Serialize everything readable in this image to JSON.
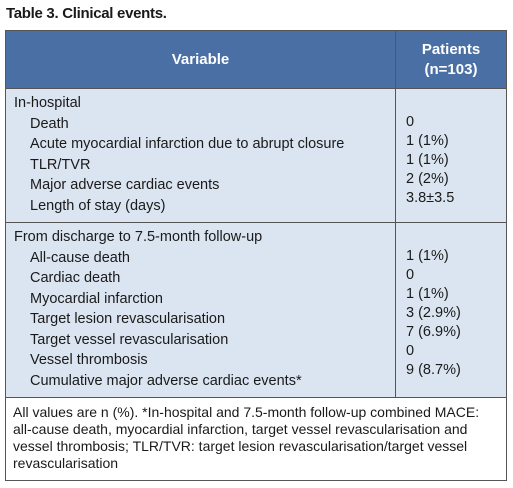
{
  "title": "Table 3. Clinical events.",
  "table": {
    "header": [
      "Variable",
      "Patients (n=103)"
    ],
    "sections": [
      {
        "label": "In-hospital",
        "rows": [
          [
            "Death",
            "0"
          ],
          [
            "Acute myocardial infarction due to abrupt closure",
            "1 (1%)"
          ],
          [
            "TLR/TVR",
            "1 (1%)"
          ],
          [
            "Major adverse cardiac events",
            "2 (2%)"
          ],
          [
            "Length of stay (days)",
            "3.8±3.5"
          ]
        ]
      },
      {
        "label": "From discharge to 7.5-month follow-up",
        "rows": [
          [
            "All-cause death",
            "1 (1%)"
          ],
          [
            "Cardiac death",
            "0"
          ],
          [
            "Myocardial infarction",
            "1 (1%)"
          ],
          [
            "Target lesion revascularisation",
            "3 (2.9%)"
          ],
          [
            "Target vessel revascularisation",
            "7 (6.9%)"
          ],
          [
            "Vessel thrombosis",
            "0"
          ],
          [
            "Cumulative major adverse cardiac events*",
            "9 (8.7%)"
          ]
        ]
      }
    ],
    "footnote": "All values are n (%). *In-hospital and 7.5-month follow-up combined MACE: all-cause death, myocardial infarction, target vessel revascularisation and vessel thrombosis; TLR/TVR: target lesion revascularisation/target vessel revascularisation"
  }
}
